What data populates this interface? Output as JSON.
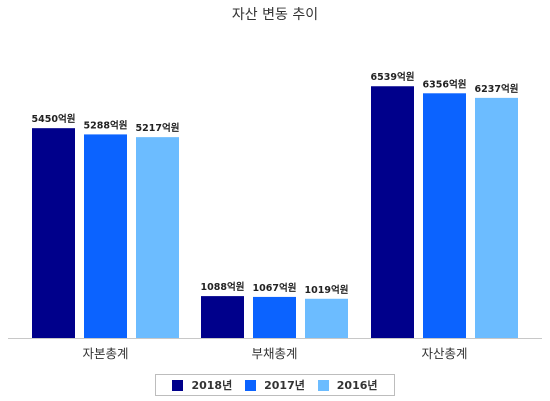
{
  "chart_data": {
    "type": "bar",
    "title": "자산 변동 추이",
    "categories": [
      "자본총계",
      "부채총계",
      "자산총계"
    ],
    "series": [
      {
        "name": "2018년",
        "color": "#00008b",
        "values": [
          5450,
          1088,
          6539
        ],
        "labels": [
          "5450억원",
          "1088억원",
          "6539억원"
        ]
      },
      {
        "name": "2017년",
        "color": "#0b63ff",
        "values": [
          5288,
          1067,
          6356
        ],
        "labels": [
          "5288억원",
          "1067억원",
          "6356억원"
        ]
      },
      {
        "name": "2016년",
        "color": "#6cbcff",
        "values": [
          5217,
          1019,
          6237
        ],
        "labels": [
          "5217억원",
          "1019억원",
          "6237억원"
        ]
      }
    ],
    "ylim": [
      0,
      8000
    ],
    "grid": false,
    "legend": "bottom"
  }
}
